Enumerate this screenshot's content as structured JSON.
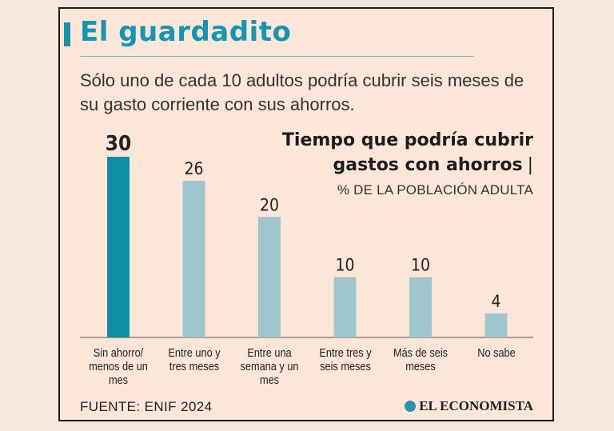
{
  "title": "El guardadito",
  "subtitle": "Sólo uno de cada 10 adultos podría cubrir seis meses de su gasto corriente con sus ahorros.",
  "source": "FUENTE: ENIF 2024",
  "logo_text": "EL ECONOMISTA",
  "colors": {
    "highlight_bar": "#0f8ea3",
    "bar": "#9ec6cc",
    "title": "#1496b3",
    "background": "#fbe6d7"
  },
  "chart_data": {
    "type": "bar",
    "title": "Tiempo que podría cubrir gastos con ahorros",
    "title_separator": "|",
    "subtitle": "% DE LA POBLACIÓN ADULTA",
    "categories": [
      "Sin ahorro/ menos de un mes",
      "Entre uno y tres meses",
      "Entre una semana y un mes",
      "Entre tres y seis meses",
      "Más de seis meses",
      "No sabe"
    ],
    "values": [
      30,
      26,
      20,
      10,
      10,
      4
    ],
    "highlight_index": 0,
    "ylim": [
      0,
      30
    ],
    "grid": false,
    "legend": "none"
  }
}
